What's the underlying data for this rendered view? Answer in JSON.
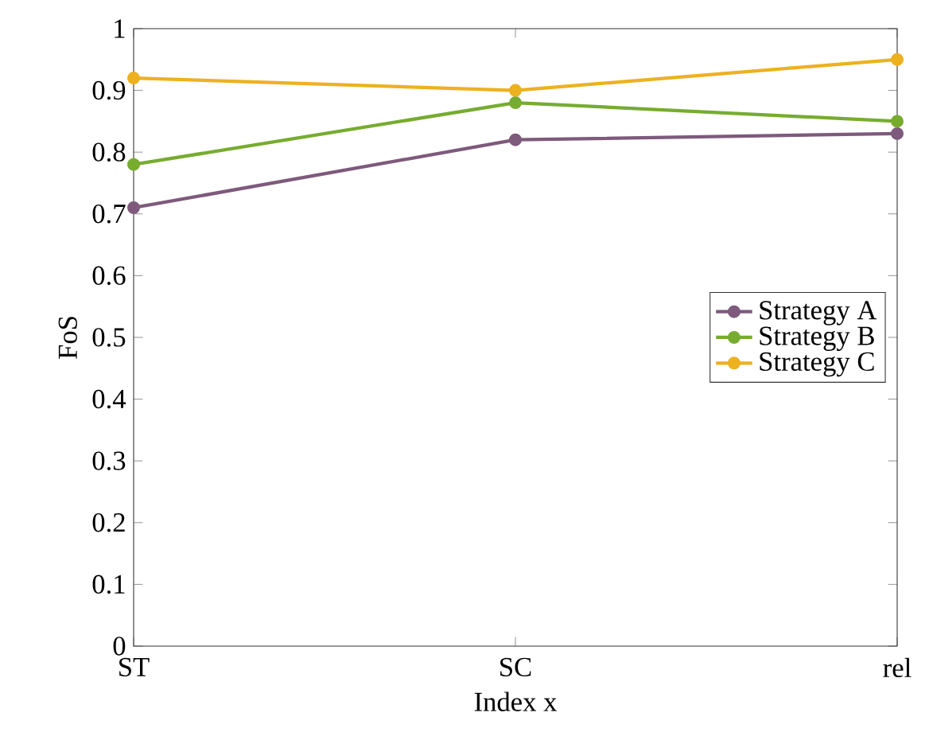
{
  "chart_data": {
    "type": "line",
    "xlabel": "Index x",
    "ylabel": "FoS",
    "categories": [
      "ST",
      "SC",
      "rel"
    ],
    "series": [
      {
        "name": "Strategy A",
        "color": "#7e5a7c",
        "values": [
          0.71,
          0.82,
          0.83
        ]
      },
      {
        "name": "Strategy B",
        "color": "#77ac30",
        "values": [
          0.78,
          0.88,
          0.85
        ]
      },
      {
        "name": "Strategy C",
        "color": "#edb120",
        "values": [
          0.92,
          0.9,
          0.95
        ]
      }
    ],
    "ylim": [
      0,
      1
    ],
    "yticks": [
      0,
      0.1,
      0.2,
      0.3,
      0.4,
      0.5,
      0.6,
      0.7,
      0.8,
      0.9,
      1
    ],
    "legend": "right",
    "marker": "circle",
    "line_style": "solid",
    "grid": false
  }
}
